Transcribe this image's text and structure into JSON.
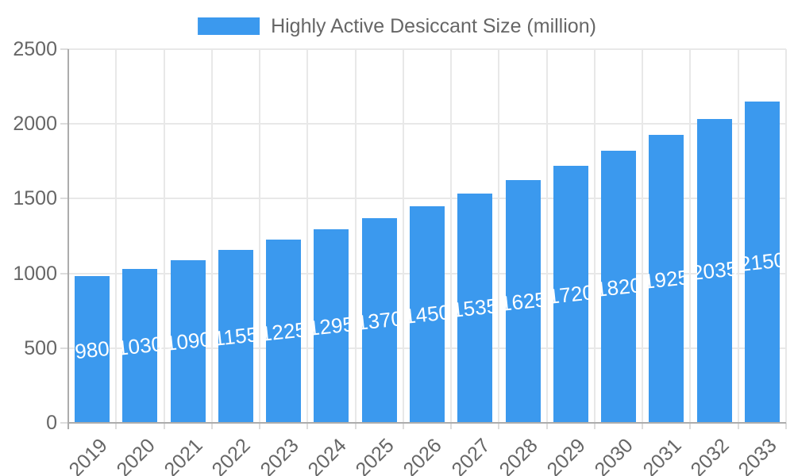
{
  "chart_data": {
    "type": "bar",
    "title": "",
    "legend_label": "Highly Active Desiccant Size (million)",
    "legend_position": "top",
    "categories": [
      "2019",
      "2020",
      "2021",
      "2022",
      "2023",
      "2024",
      "2025",
      "2026",
      "2027",
      "2028",
      "2029",
      "2030",
      "2031",
      "2032",
      "2033"
    ],
    "values": [
      980,
      1030,
      1090,
      1155,
      1225,
      1295,
      1370,
      1450,
      1535,
      1625,
      1720,
      1820,
      1925,
      2035,
      2150
    ],
    "xlabel": "",
    "ylabel": "",
    "ylim": [
      0,
      2500
    ],
    "yticks": [
      0,
      500,
      1000,
      1500,
      2000,
      2500
    ],
    "grid": true,
    "bar_color": "#3B99EE",
    "value_label_color": "#FFFFFF",
    "axis_text_color": "#666666",
    "grid_color": "#E8E8E8",
    "axis_line_color": "#ACACAC",
    "tick_color": "#DCDCDC",
    "background": "#FFFFFF"
  }
}
